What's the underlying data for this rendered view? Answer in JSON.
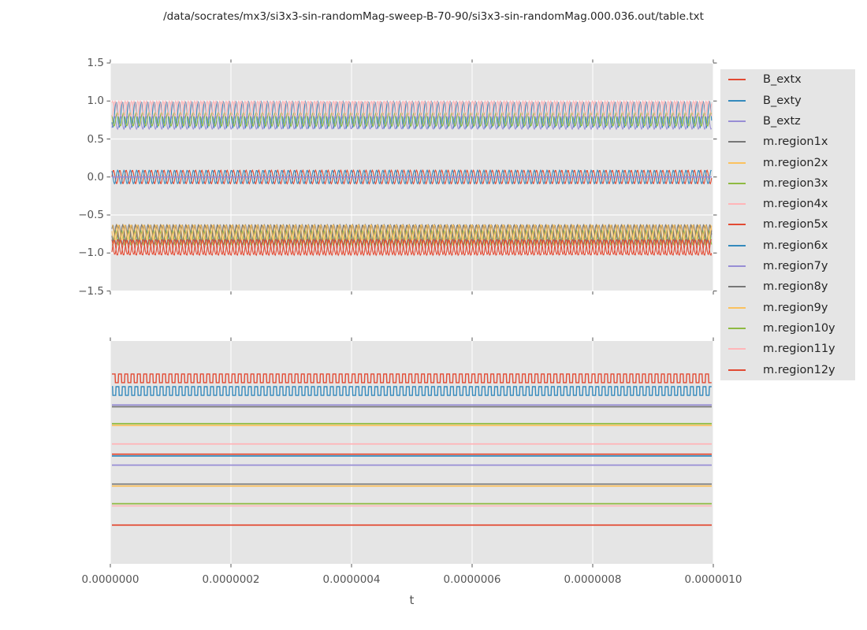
{
  "title": "/data/socrates/mx3/si3x3-sin-randomMag-sweep-B-70-90/si3x3-sin-randomMag.000.036.out/table.txt",
  "x_axis": {
    "label": "t",
    "tick_labels": [
      "0.0000000",
      "0.0000002",
      "0.0000004",
      "0.0000006",
      "0.0000008",
      "0.0000010"
    ],
    "tick_values": [
      0,
      2e-07,
      4e-07,
      6e-07,
      8e-07,
      1e-06
    ]
  },
  "colors": {
    "axes_background": "#e5e5e5",
    "grid": "#ffffff",
    "tick_mark": "#555555",
    "tick_text": "#555555",
    "title_text": "#262626",
    "legend_background": "#e5e5e5",
    "cycle_red": "#E24A33",
    "cycle_blue": "#348ABD",
    "cycle_purple": "#988ED5",
    "cycle_gray": "#777777",
    "cycle_orange": "#FBC15E",
    "cycle_green": "#8EBA42",
    "cycle_pink": "#FFB5B8"
  },
  "legend": {
    "items": [
      {
        "label": "B_extx",
        "color": "#E24A33"
      },
      {
        "label": "B_exty",
        "color": "#348ABD"
      },
      {
        "label": "B_extz",
        "color": "#988ED5"
      },
      {
        "label": "m.region1x",
        "color": "#777777"
      },
      {
        "label": "m.region2x",
        "color": "#FBC15E"
      },
      {
        "label": "m.region3x",
        "color": "#8EBA42"
      },
      {
        "label": "m.region4x",
        "color": "#FFB5B8"
      },
      {
        "label": "m.region5x",
        "color": "#E24A33"
      },
      {
        "label": "m.region6x",
        "color": "#348ABD"
      },
      {
        "label": "m.region7y",
        "color": "#988ED5"
      },
      {
        "label": "m.region8y",
        "color": "#777777"
      },
      {
        "label": "m.region9y",
        "color": "#FBC15E"
      },
      {
        "label": "m.region10y",
        "color": "#8EBA42"
      },
      {
        "label": "m.region11y",
        "color": "#FFB5B8"
      },
      {
        "label": "m.region12y",
        "color": "#E24A33"
      }
    ]
  },
  "chart_data": [
    {
      "type": "line",
      "subplot": "top",
      "title": "",
      "xlabel": "",
      "ylabel": "",
      "xlim": [
        0,
        1e-06
      ],
      "ylim": [
        -1.5,
        1.5
      ],
      "grid": true,
      "x_ticks": [
        0,
        2e-07,
        4e-07,
        6e-07,
        8e-07,
        1e-06
      ],
      "y_ticks": [
        1.5,
        1.0,
        0.5,
        0.0,
        -0.5,
        -1.0,
        -1.5
      ],
      "y_tick_labels": [
        "1.5",
        "1.0",
        "0.5",
        "0.0",
        "−0.5",
        "−1.0",
        "−1.5"
      ],
      "waveform_note": "dense oscillations ~95 cycles over 0..1e-6; parameters give mean value, amplitude and relative phase of each trace",
      "series": [
        {
          "name": "B_extx",
          "color": "#E24A33",
          "waveform": "sine",
          "mean": 0.0,
          "amplitude": 0.09,
          "cycles": 95,
          "phase": 0.0
        },
        {
          "name": "B_exty",
          "color": "#348ABD",
          "waveform": "sine",
          "mean": 0.0,
          "amplitude": 0.09,
          "cycles": 95,
          "phase": 0.33
        },
        {
          "name": "B_extz",
          "color": "#988ED5",
          "waveform": "flat",
          "mean": 0.0,
          "amplitude": 0.0,
          "cycles": 0,
          "phase": 0.0
        },
        {
          "name": "m.region1x",
          "color": "#777777",
          "waveform": "sine",
          "mean": -0.76,
          "amplitude": 0.13,
          "cycles": 95,
          "phase": 0.1
        },
        {
          "name": "m.region2x",
          "color": "#FBC15E",
          "waveform": "sine",
          "mean": -0.75,
          "amplitude": 0.12,
          "cycles": 95,
          "phase": 0.45
        },
        {
          "name": "m.region3x",
          "color": "#8EBA42",
          "waveform": "sine",
          "mean": -0.8,
          "amplitude": 0.1,
          "cycles": 95,
          "phase": 0.7
        },
        {
          "name": "m.region4x",
          "color": "#FFB5B8",
          "waveform": "sine",
          "mean": 0.89,
          "amplitude": 0.11,
          "cycles": 95,
          "phase": 0.15
        },
        {
          "name": "m.region5x",
          "color": "#E24A33",
          "waveform": "sine",
          "mean": -0.92,
          "amplitude": 0.1,
          "cycles": 95,
          "phase": 0.3
        },
        {
          "name": "m.region6x",
          "color": "#348ABD",
          "waveform": "sine",
          "mean": 0.82,
          "amplitude": 0.17,
          "cycles": 95,
          "phase": 0.6
        },
        {
          "name": "m.region7y",
          "color": "#988ED5",
          "waveform": "sine",
          "mean": 0.72,
          "amplitude": 0.09,
          "cycles": 95,
          "phase": 0.85
        },
        {
          "name": "m.region8y",
          "color": "#777777",
          "waveform": "sine",
          "mean": -0.74,
          "amplitude": 0.11,
          "cycles": 95,
          "phase": 0.55
        },
        {
          "name": "m.region9y",
          "color": "#FBC15E",
          "waveform": "sine",
          "mean": -0.73,
          "amplitude": 0.1,
          "cycles": 95,
          "phase": 0.2
        },
        {
          "name": "m.region10y",
          "color": "#8EBA42",
          "waveform": "sine",
          "mean": 0.76,
          "amplitude": 0.09,
          "cycles": 95,
          "phase": 0.4
        },
        {
          "name": "m.region11y",
          "color": "#FFB5B8",
          "waveform": "sine",
          "mean": 0.9,
          "amplitude": 0.1,
          "cycles": 95,
          "phase": 0.75
        },
        {
          "name": "m.region12y",
          "color": "#E24A33",
          "waveform": "sine",
          "mean": -0.93,
          "amplitude": 0.1,
          "cycles": 95,
          "phase": 0.9
        }
      ]
    },
    {
      "type": "line",
      "subplot": "bottom",
      "title": "",
      "xlabel": "t",
      "ylabel": "",
      "xlim": [
        0,
        1e-06
      ],
      "grid": true,
      "x_ticks": [
        0,
        2e-07,
        4e-07,
        6e-07,
        8e-07,
        1e-06
      ],
      "y_ticks": [],
      "y_tick_labels": [],
      "waveform_note": "y axis unlabeled in source; levels given as fraction of axes height measured from top edge",
      "series": [
        {
          "name": "B_extx",
          "color": "#E24A33",
          "waveform": "square",
          "high": 0.148,
          "low": 0.187,
          "cycles": 95,
          "phase": 0.0
        },
        {
          "name": "B_exty",
          "color": "#348ABD",
          "waveform": "square",
          "high": 0.205,
          "low": 0.244,
          "cycles": 95,
          "phase": 0.4
        },
        {
          "name": "B_extz",
          "color": "#988ED5",
          "waveform": "flat",
          "level": 0.287
        },
        {
          "name": "m.region1x",
          "color": "#777777",
          "waveform": "flat",
          "level": 0.295
        },
        {
          "name": "m.region2x",
          "color": "#FBC15E",
          "waveform": "flat",
          "level": 0.379
        },
        {
          "name": "m.region3x",
          "color": "#8EBA42",
          "waveform": "flat",
          "level": 0.371
        },
        {
          "name": "m.region4x",
          "color": "#FFB5B8",
          "waveform": "flat",
          "level": 0.462
        },
        {
          "name": "m.region5x",
          "color": "#E24A33",
          "waveform": "flat",
          "level": 0.508
        },
        {
          "name": "m.region6x",
          "color": "#348ABD",
          "waveform": "flat",
          "level": 0.516
        },
        {
          "name": "m.region7y",
          "color": "#988ED5",
          "waveform": "flat",
          "level": 0.557
        },
        {
          "name": "m.region8y",
          "color": "#777777",
          "waveform": "flat",
          "level": 0.642
        },
        {
          "name": "m.region9y",
          "color": "#FBC15E",
          "waveform": "flat",
          "level": 0.651
        },
        {
          "name": "m.region10y",
          "color": "#8EBA42",
          "waveform": "flat",
          "level": 0.73
        },
        {
          "name": "m.region11y",
          "color": "#FFB5B8",
          "waveform": "flat",
          "level": 0.74
        },
        {
          "name": "m.region12y",
          "color": "#E24A33",
          "waveform": "flat",
          "level": 0.826
        }
      ]
    }
  ]
}
